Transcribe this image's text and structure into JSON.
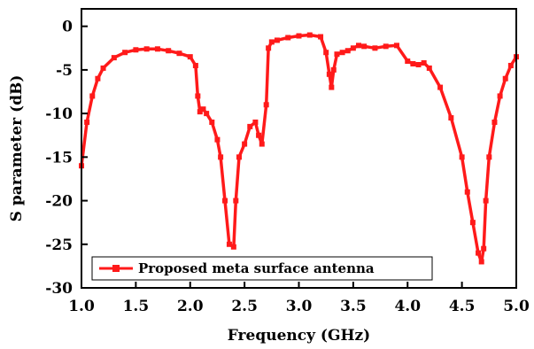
{
  "chart_data": {
    "type": "line",
    "xlabel": "Frequency (GHz)",
    "ylabel": "S parameter (dB)",
    "xlim": [
      1.0,
      5.0
    ],
    "ylim": [
      -30,
      2
    ],
    "xticks": [
      "1.0",
      "1.5",
      "2.0",
      "2.5",
      "3.0",
      "3.5",
      "4.0",
      "4.5",
      "5.0"
    ],
    "xtick_values": [
      1.0,
      1.5,
      2.0,
      2.5,
      3.0,
      3.5,
      4.0,
      4.5,
      5.0
    ],
    "yticks": [
      "0",
      "-5",
      "-10",
      "-15",
      "-20",
      "-25",
      "-30"
    ],
    "ytick_values": [
      0,
      -5,
      -10,
      -15,
      -20,
      -25,
      -30
    ],
    "grid": false,
    "legend_position": "bottom-left",
    "colors": {
      "series": "#ff1a1a",
      "axis": "#000000"
    },
    "series": [
      {
        "name": "Proposed meta surface antenna",
        "marker": "square",
        "x": [
          1.0,
          1.05,
          1.1,
          1.15,
          1.2,
          1.3,
          1.4,
          1.5,
          1.6,
          1.7,
          1.8,
          1.9,
          2.0,
          2.05,
          2.07,
          2.09,
          2.12,
          2.15,
          2.2,
          2.25,
          2.28,
          2.32,
          2.36,
          2.4,
          2.42,
          2.45,
          2.5,
          2.55,
          2.6,
          2.63,
          2.66,
          2.7,
          2.72,
          2.75,
          2.8,
          2.9,
          3.0,
          3.1,
          3.2,
          3.25,
          3.28,
          3.3,
          3.32,
          3.35,
          3.4,
          3.45,
          3.5,
          3.55,
          3.6,
          3.7,
          3.8,
          3.9,
          4.0,
          4.05,
          4.1,
          4.15,
          4.2,
          4.3,
          4.4,
          4.5,
          4.55,
          4.6,
          4.65,
          4.68,
          4.7,
          4.72,
          4.75,
          4.8,
          4.85,
          4.9,
          4.95,
          5.0
        ],
        "values": [
          -16.0,
          -11.0,
          -8.0,
          -6.0,
          -4.8,
          -3.6,
          -3.0,
          -2.7,
          -2.6,
          -2.6,
          -2.8,
          -3.1,
          -3.5,
          -4.5,
          -8.0,
          -9.8,
          -9.5,
          -10.0,
          -11.0,
          -13.0,
          -15.0,
          -20.0,
          -25.0,
          -25.3,
          -20.0,
          -15.0,
          -13.5,
          -11.5,
          -11.0,
          -12.5,
          -13.5,
          -9.0,
          -2.5,
          -1.8,
          -1.6,
          -1.3,
          -1.1,
          -1.0,
          -1.2,
          -3.0,
          -5.5,
          -7.0,
          -5.0,
          -3.2,
          -3.0,
          -2.8,
          -2.5,
          -2.2,
          -2.3,
          -2.5,
          -2.3,
          -2.2,
          -4.0,
          -4.3,
          -4.4,
          -4.2,
          -4.8,
          -7.0,
          -10.5,
          -15.0,
          -19.0,
          -22.5,
          -26.0,
          -27.0,
          -25.5,
          -20.0,
          -15.0,
          -11.0,
          -8.0,
          -6.0,
          -4.5,
          -3.5
        ]
      }
    ]
  }
}
